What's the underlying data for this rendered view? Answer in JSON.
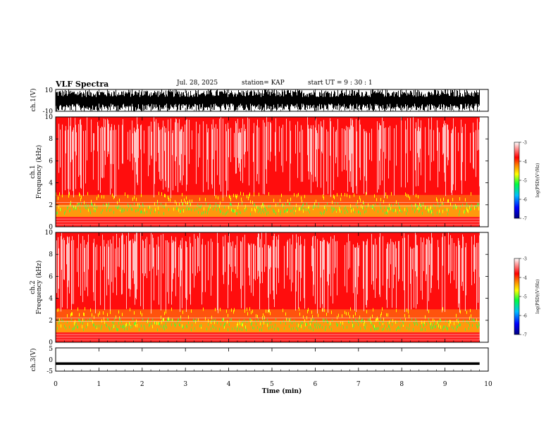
{
  "header": {
    "title": "VLF Spectra",
    "date": "Jul. 28, 2025",
    "station": "station= KAP",
    "start": "start  UT  =   9  : 30 : 1"
  },
  "chart_data": [
    {
      "type": "line",
      "name": "ch1-waveform",
      "ylabel": "ch.1(V)",
      "ylim": [
        -10,
        10
      ],
      "yticks": [
        "10",
        "-10"
      ],
      "description_values": "dense oscillating voltage waveform filling roughly -10..10 V",
      "color": "#000000"
    },
    {
      "type": "heatmap",
      "name": "ch1-spectrogram",
      "ylabel_line1": "ch.1",
      "ylabel_line2": "Frequency  (kHz)",
      "ylim": [
        0,
        10
      ],
      "yticks": [
        "0",
        "2",
        "4",
        "6",
        "8",
        "10"
      ],
      "colorbar": {
        "label": "log(PSD)(V²/Hz)",
        "range": [
          -7,
          -3
        ],
        "ticks": [
          "-3",
          "-4",
          "-5",
          "-6",
          "-7"
        ],
        "colors": [
          "#00007f",
          "#0000ff",
          "#00bfff",
          "#00ff40",
          "#ffff00",
          "#ff8000",
          "#ff0000",
          "#ffffff"
        ]
      },
      "bands": [
        {
          "from_khz": 0.9,
          "to_khz": 2.0,
          "level": -4.8
        },
        {
          "from_khz": 2.0,
          "to_khz": 2.9,
          "level": -4.2
        },
        {
          "from_khz": 2.9,
          "to_khz": 10.0,
          "level": -3.5
        }
      ]
    },
    {
      "type": "heatmap",
      "name": "ch2-spectrogram",
      "ylabel_line1": "ch.2",
      "ylabel_line2": "Frequency  (kHz)",
      "ylim": [
        0,
        10
      ],
      "yticks": [
        "0",
        "2",
        "4",
        "6",
        "8",
        "10"
      ],
      "colorbar": {
        "label": "log(PSD)(V²/Hz)",
        "range": [
          -7,
          -3
        ],
        "ticks": [
          "-3",
          "-4",
          "-5",
          "-6",
          "-7"
        ],
        "colors": [
          "#00007f",
          "#0000ff",
          "#00bfff",
          "#00ff40",
          "#ffff00",
          "#ff8000",
          "#ff0000",
          "#ffffff"
        ]
      },
      "bands": [
        {
          "from_khz": 0.9,
          "to_khz": 2.0,
          "level": -5.0
        },
        {
          "from_khz": 2.0,
          "to_khz": 3.0,
          "level": -4.3
        },
        {
          "from_khz": 3.0,
          "to_khz": 10.0,
          "level": -3.5
        }
      ]
    },
    {
      "type": "line",
      "name": "ch3-waveform",
      "ylabel": "ch.3(V)",
      "ylim": [
        -5,
        5
      ],
      "yticks": [
        "5",
        "0",
        "-5"
      ],
      "description_values": "narrow band near -1..-2 V",
      "color": "#000000"
    }
  ],
  "x_axis": {
    "label": "Time  (min)",
    "range": [
      0,
      10
    ],
    "ticks": [
      "0",
      "1",
      "2",
      "3",
      "4",
      "5",
      "6",
      "7",
      "8",
      "9",
      "10"
    ],
    "data_end_min": 9.8
  }
}
